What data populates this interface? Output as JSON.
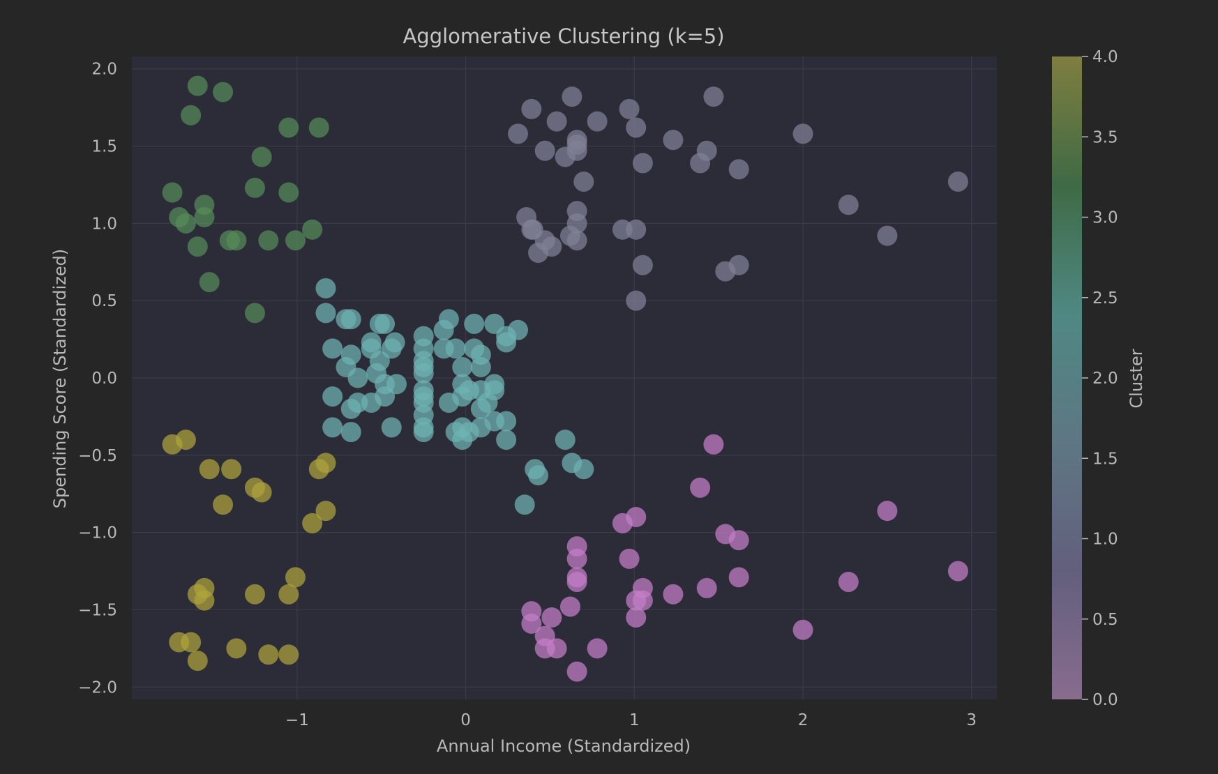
{
  "chart_data": {
    "type": "scatter",
    "title": "Agglomerative Clustering (k=5)",
    "xlabel": "Annual Income (Standardized)",
    "ylabel": "Spending Score (Standardized)",
    "xlim": [
      -1.98,
      3.15
    ],
    "ylim": [
      -2.08,
      2.08
    ],
    "x_ticks": [
      -1,
      0,
      1,
      2,
      3
    ],
    "x_tick_labels": [
      "−1",
      "0",
      "1",
      "2",
      "3"
    ],
    "y_ticks": [
      2.0,
      1.5,
      1.0,
      0.5,
      0.0,
      -0.5,
      -1.0,
      -1.5,
      -2.0
    ],
    "y_tick_labels": [
      "2.0",
      "1.5",
      "1.0",
      "0.5",
      "0.0",
      "−0.5",
      "−1.0",
      "−1.5",
      "−2.0"
    ],
    "grid": true,
    "colorbar": {
      "label": "Cluster",
      "range": [
        0.0,
        4.0
      ],
      "ticks": [
        4.0,
        3.5,
        3.0,
        2.5,
        2.0,
        1.5,
        1.0,
        0.5,
        0.0
      ],
      "tick_labels": [
        "4.0",
        "3.5",
        "3.0",
        "2.5",
        "2.0",
        "1.5",
        "1.0",
        "0.5",
        "0.0"
      ],
      "colormap_stops": [
        "#886c8e",
        "#625f7d",
        "#5e7783",
        "#4f8883",
        "#3f6a45",
        "#7f7e40"
      ]
    },
    "cluster_colors": {
      "0": "#c57ec8",
      "1": "#7f8196",
      "2": "#6fb3b3",
      "3": "#568c57",
      "4": "#aea33c"
    },
    "series": [
      {
        "cluster": 4,
        "points": [
          [
            -1.74,
            -0.43
          ],
          [
            -1.66,
            -0.4
          ],
          [
            -1.52,
            -0.59
          ],
          [
            -1.39,
            -0.59
          ],
          [
            -1.44,
            -0.82
          ],
          [
            -1.25,
            -0.71
          ],
          [
            -1.21,
            -0.74
          ],
          [
            -0.87,
            -0.59
          ],
          [
            -0.83,
            -0.55
          ],
          [
            -0.83,
            -0.86
          ],
          [
            -0.91,
            -0.94
          ],
          [
            -1.01,
            -1.29
          ],
          [
            -1.05,
            -1.4
          ],
          [
            -1.25,
            -1.4
          ],
          [
            -1.55,
            -1.36
          ],
          [
            -1.59,
            -1.4
          ],
          [
            -1.55,
            -1.44
          ],
          [
            -1.7,
            -1.71
          ],
          [
            -1.63,
            -1.71
          ],
          [
            -1.59,
            -1.83
          ],
          [
            -1.36,
            -1.75
          ],
          [
            -1.17,
            -1.79
          ],
          [
            -1.05,
            -1.79
          ]
        ]
      },
      {
        "cluster": 3,
        "points": [
          [
            -1.59,
            1.89
          ],
          [
            -1.44,
            1.85
          ],
          [
            -1.63,
            1.7
          ],
          [
            -1.05,
            1.62
          ],
          [
            -0.87,
            1.62
          ],
          [
            -1.21,
            1.43
          ],
          [
            -1.25,
            1.23
          ],
          [
            -1.05,
            1.2
          ],
          [
            -1.74,
            1.2
          ],
          [
            -1.55,
            1.12
          ],
          [
            -1.7,
            1.04
          ],
          [
            -1.55,
            1.04
          ],
          [
            -1.66,
            1.0
          ],
          [
            -1.4,
            0.89
          ],
          [
            -1.36,
            0.89
          ],
          [
            -1.17,
            0.89
          ],
          [
            -1.01,
            0.89
          ],
          [
            -0.91,
            0.96
          ],
          [
            -1.59,
            0.85
          ],
          [
            -1.52,
            0.62
          ],
          [
            -1.25,
            0.42
          ]
        ]
      },
      {
        "cluster": 2,
        "points": [
          [
            -0.83,
            0.58
          ],
          [
            -0.83,
            0.42
          ],
          [
            -0.71,
            0.38
          ],
          [
            -0.68,
            0.38
          ],
          [
            -0.51,
            0.35
          ],
          [
            -0.48,
            0.35
          ],
          [
            -0.79,
            0.19
          ],
          [
            -0.68,
            0.15
          ],
          [
            -0.71,
            0.07
          ],
          [
            -0.64,
            0.0
          ],
          [
            -0.56,
            0.23
          ],
          [
            -0.53,
            0.03
          ],
          [
            -0.48,
            -0.04
          ],
          [
            -0.42,
            0.23
          ],
          [
            -0.44,
            0.19
          ],
          [
            -0.41,
            -0.04
          ],
          [
            -0.56,
            0.19
          ],
          [
            -0.48,
            -0.12
          ],
          [
            -0.56,
            -0.16
          ],
          [
            -0.64,
            -0.16
          ],
          [
            -0.68,
            -0.2
          ],
          [
            -0.79,
            -0.12
          ],
          [
            -0.79,
            -0.32
          ],
          [
            -0.68,
            -0.35
          ],
          [
            -0.44,
            -0.32
          ],
          [
            -0.51,
            0.11
          ],
          [
            -0.25,
            0.27
          ],
          [
            -0.25,
            0.19
          ],
          [
            -0.25,
            0.11
          ],
          [
            -0.25,
            0.07
          ],
          [
            -0.25,
            0.03
          ],
          [
            -0.25,
            -0.08
          ],
          [
            -0.25,
            -0.12
          ],
          [
            -0.25,
            -0.16
          ],
          [
            -0.25,
            -0.24
          ],
          [
            -0.25,
            -0.32
          ],
          [
            -0.25,
            -0.35
          ],
          [
            -0.1,
            0.38
          ],
          [
            -0.13,
            0.31
          ],
          [
            -0.13,
            0.19
          ],
          [
            -0.06,
            0.19
          ],
          [
            0.05,
            0.35
          ],
          [
            0.17,
            0.35
          ],
          [
            0.31,
            0.31
          ],
          [
            0.24,
            0.27
          ],
          [
            0.24,
            0.23
          ],
          [
            0.05,
            0.19
          ],
          [
            0.09,
            0.15
          ],
          [
            0.09,
            0.07
          ],
          [
            -0.02,
            0.07
          ],
          [
            -0.02,
            -0.04
          ],
          [
            0.02,
            -0.08
          ],
          [
            0.09,
            -0.08
          ],
          [
            0.17,
            -0.04
          ],
          [
            0.17,
            -0.08
          ],
          [
            -0.02,
            -0.12
          ],
          [
            0.13,
            -0.16
          ],
          [
            0.09,
            -0.2
          ],
          [
            -0.1,
            -0.16
          ],
          [
            0.24,
            -0.28
          ],
          [
            0.17,
            -0.28
          ],
          [
            0.09,
            -0.32
          ],
          [
            0.02,
            -0.35
          ],
          [
            -0.02,
            -0.32
          ],
          [
            -0.06,
            -0.35
          ],
          [
            -0.02,
            -0.4
          ],
          [
            0.24,
            -0.4
          ],
          [
            0.41,
            -0.59
          ],
          [
            0.43,
            -0.63
          ],
          [
            0.35,
            -0.82
          ],
          [
            0.59,
            -0.4
          ],
          [
            0.63,
            -0.55
          ],
          [
            0.7,
            -0.59
          ]
        ]
      },
      {
        "cluster": 1,
        "points": [
          [
            0.31,
            1.58
          ],
          [
            0.39,
            1.74
          ],
          [
            0.54,
            1.66
          ],
          [
            0.63,
            1.82
          ],
          [
            0.78,
            1.66
          ],
          [
            0.47,
            1.47
          ],
          [
            0.59,
            1.43
          ],
          [
            0.66,
            1.54
          ],
          [
            0.66,
            1.51
          ],
          [
            0.66,
            1.47
          ],
          [
            0.97,
            1.74
          ],
          [
            1.01,
            1.62
          ],
          [
            1.05,
            1.39
          ],
          [
            0.7,
            1.27
          ],
          [
            1.23,
            1.54
          ],
          [
            1.39,
            1.39
          ],
          [
            1.43,
            1.47
          ],
          [
            1.47,
            1.82
          ],
          [
            1.62,
            1.35
          ],
          [
            2.0,
            1.58
          ],
          [
            2.92,
            1.27
          ],
          [
            2.27,
            1.12
          ],
          [
            2.5,
            0.92
          ],
          [
            0.36,
            1.04
          ],
          [
            0.39,
            0.96
          ],
          [
            0.4,
            0.96
          ],
          [
            0.47,
            0.89
          ],
          [
            0.51,
            0.85
          ],
          [
            0.43,
            0.81
          ],
          [
            0.66,
            1.08
          ],
          [
            0.66,
            1.0
          ],
          [
            0.62,
            0.92
          ],
          [
            0.66,
            0.89
          ],
          [
            0.93,
            0.96
          ],
          [
            1.01,
            0.96
          ],
          [
            1.05,
            0.73
          ],
          [
            1.54,
            0.69
          ],
          [
            1.62,
            0.73
          ],
          [
            1.01,
            0.5
          ]
        ]
      },
      {
        "cluster": 0,
        "points": [
          [
            1.47,
            -0.43
          ],
          [
            1.39,
            -0.71
          ],
          [
            2.5,
            -0.86
          ],
          [
            0.93,
            -0.94
          ],
          [
            1.01,
            -0.9
          ],
          [
            1.54,
            -1.01
          ],
          [
            1.62,
            -1.05
          ],
          [
            0.66,
            -1.09
          ],
          [
            0.66,
            -1.17
          ],
          [
            0.97,
            -1.17
          ],
          [
            0.66,
            -1.29
          ],
          [
            0.66,
            -1.32
          ],
          [
            1.62,
            -1.29
          ],
          [
            2.92,
            -1.25
          ],
          [
            2.27,
            -1.32
          ],
          [
            1.05,
            -1.36
          ],
          [
            1.01,
            -1.44
          ],
          [
            1.05,
            -1.44
          ],
          [
            1.23,
            -1.4
          ],
          [
            1.43,
            -1.36
          ],
          [
            0.62,
            -1.48
          ],
          [
            0.39,
            -1.51
          ],
          [
            0.51,
            -1.55
          ],
          [
            0.39,
            -1.59
          ],
          [
            1.01,
            -1.55
          ],
          [
            2.0,
            -1.63
          ],
          [
            0.47,
            -1.67
          ],
          [
            0.47,
            -1.75
          ],
          [
            0.54,
            -1.75
          ],
          [
            0.78,
            -1.75
          ],
          [
            0.66,
            -1.9
          ]
        ]
      }
    ]
  }
}
